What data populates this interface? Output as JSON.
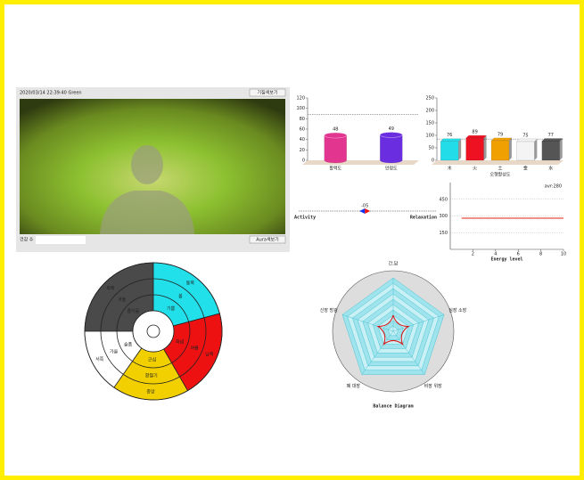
{
  "panel": {
    "timestamp": "2020/03/14 22:39:40  Green",
    "button_temperament": "기질색보기",
    "health_label": "건강 수",
    "button_aura": "Aura색보기"
  },
  "chart_data": [
    {
      "type": "bar",
      "shape": "cylinder",
      "categories": [
        "활력도",
        "안정도"
      ],
      "values": [
        48,
        49
      ],
      "colors": [
        "#e2358f",
        "#6a2ee0"
      ],
      "ylim": [
        0,
        120
      ],
      "yticks": [
        0,
        20,
        40,
        60,
        80,
        100,
        120
      ],
      "reference_line": 88
    },
    {
      "type": "bar",
      "shape": "box",
      "categories": [
        "木",
        "火",
        "土",
        "金",
        "水"
      ],
      "values": [
        76,
        89,
        79,
        75,
        77
      ],
      "colors": [
        "#22dde8",
        "#ee1122",
        "#f0a000",
        "#f4f4f4",
        "#555555"
      ],
      "ylim": [
        0,
        250
      ],
      "yticks": [
        0,
        50,
        100,
        150,
        200,
        250
      ],
      "xlabel": "오행활성도",
      "reference_line": 85
    },
    {
      "type": "slider",
      "left_label": "Activity",
      "right_label": "Relaxation",
      "value": -5,
      "value_label": "-05",
      "xlim": [
        -100,
        100
      ]
    },
    {
      "type": "line",
      "xlabel": "Energy level",
      "annotation": "avr:280",
      "x": [
        1,
        2,
        3,
        4,
        5,
        6,
        7,
        8,
        9,
        10
      ],
      "values": [
        280,
        280,
        280,
        280,
        280,
        280,
        280,
        280,
        280,
        280
      ],
      "color": "#dd2211",
      "xlim": [
        0,
        10
      ],
      "xticks": [
        2,
        4,
        6,
        8,
        10
      ],
      "ylim": [
        0,
        600
      ],
      "yticks": [
        150,
        300,
        450
      ]
    },
    {
      "type": "radar",
      "title": "Balance Diagram",
      "categories": [
        "간,담",
        "심장 소장",
        "비장 위장",
        "폐 대장",
        "신장 방광"
      ],
      "values": [
        3,
        3,
        3,
        3,
        3
      ],
      "rlim": [
        0,
        10
      ],
      "rticks": [
        1,
        2,
        3,
        4,
        5,
        6,
        7,
        8,
        9,
        10
      ],
      "color": "#dd1111"
    }
  ],
  "wheel": {
    "sectors": [
      {
        "color": "#4a4a4a",
        "from": 270,
        "to": 360,
        "labels": [
          "북쪽",
          "겨울",
          "즐거움"
        ]
      },
      {
        "color": "#22e0ea",
        "from": 0,
        "to": 75,
        "labels": [
          "동쪽",
          "봄",
          "기쁨"
        ]
      },
      {
        "color": "#ee1111",
        "from": 75,
        "to": 150,
        "labels": [
          "남쪽",
          "여름",
          "화냄"
        ]
      },
      {
        "color": "#f2d000",
        "from": 150,
        "to": 215,
        "labels": [
          "중앙",
          "환절기",
          "근심"
        ]
      },
      {
        "color": "#ffffff",
        "from": 215,
        "to": 270,
        "labels": [
          "서쪽",
          "가을",
          "슬픔"
        ]
      }
    ]
  }
}
